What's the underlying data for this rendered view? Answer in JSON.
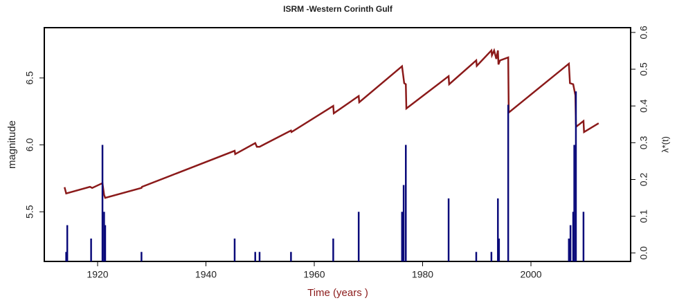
{
  "chart_data": {
    "type": "combo",
    "title": "ISRM -Western Corinth Gulf",
    "xlabel": "Time (years )",
    "ylabel": "magnitude",
    "y2label": "λ*(t)",
    "xlim": [
      1910.16,
      2018.4
    ],
    "xticks": [
      1920,
      1940,
      1960,
      1980,
      2000
    ],
    "ylim": [
      5.129,
      6.876
    ],
    "yticks": [
      5.5,
      {
        "value": 6,
        "label": "6.0"
      },
      6.5
    ],
    "y2lim": [
      -0.023,
      0.613
    ],
    "y2ticks": [
      {
        "value": 0,
        "label": "0.0"
      },
      0.1,
      0.2,
      0.3,
      0.4,
      0.5,
      0.6
    ],
    "series": [
      {
        "type": "line",
        "axis": "y2",
        "color": "#8b1a1a",
        "x": [
          1913.9,
          1914.2,
          1918.6,
          1919.0,
          1920.9,
          1921.2,
          1921.4,
          1928.1,
          1928.2,
          1945.3,
          1945.4,
          1949.1,
          1949.4,
          1949.9,
          1955.7,
          1955.8,
          1963.5,
          1963.6,
          1968.2,
          1968.3,
          1976.2,
          1976.4,
          1976.6,
          1976.9,
          1977.0,
          1984.8,
          1984.9,
          1989.9,
          1990.0,
          1992.7,
          1992.8,
          1993.2,
          1993.6,
          1993.9,
          1994.0,
          1994.3,
          1995.8,
          1995.9,
          2007.0,
          2007.2,
          2007.8,
          2008.2,
          2008.3,
          2008.4,
          2009.7,
          2009.8,
          2012.5
        ],
        "values": [
          0.179,
          0.162,
          0.18,
          0.177,
          0.19,
          0.158,
          0.15,
          0.177,
          0.18,
          0.278,
          0.269,
          0.299,
          0.289,
          0.289,
          0.333,
          0.329,
          0.4,
          0.38,
          0.427,
          0.41,
          0.508,
          0.485,
          0.462,
          0.459,
          0.393,
          0.481,
          0.459,
          0.524,
          0.509,
          0.551,
          0.538,
          0.551,
          0.528,
          0.551,
          0.513,
          0.524,
          0.532,
          0.382,
          0.515,
          0.462,
          0.459,
          0.429,
          0.351,
          0.344,
          0.359,
          0.329,
          0.353
        ]
      },
      {
        "type": "spike",
        "color": "#0a0a7a",
        "x": [
          1914.2,
          1914.4,
          1918.8,
          1920.9,
          1921.2,
          1921.4,
          1928.1,
          1945.3,
          1949.1,
          1949.9,
          1955.7,
          1963.5,
          1968.2,
          1976.2,
          1976.5,
          1976.9,
          1984.8,
          1989.9,
          1992.7,
          1993.9,
          1994.1,
          1995.8,
          2007.0,
          2007.3,
          2007.8,
          2008.0,
          2008.3,
          2009.7
        ],
        "values": [
          5.2,
          5.4,
          5.3,
          6.0,
          5.5,
          5.4,
          5.2,
          5.3,
          5.2,
          5.2,
          5.2,
          5.3,
          5.5,
          5.5,
          5.7,
          6.0,
          5.6,
          5.2,
          5.2,
          5.6,
          5.3,
          6.3,
          5.3,
          5.4,
          5.5,
          6.0,
          6.4,
          5.5
        ]
      }
    ]
  }
}
